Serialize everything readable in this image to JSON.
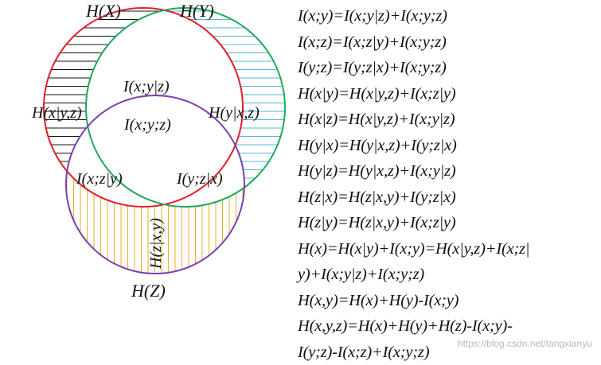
{
  "colors": {
    "circle_x": "#e0202a",
    "circle_y": "#1faa5a",
    "circle_z": "#7a3fb0",
    "hatch_x": "#111111",
    "hatch_y": "#4fb8d8",
    "hatch_z": "#e8b020"
  },
  "venn": {
    "label_hx": "H(X)",
    "label_hy": "H(Y)",
    "label_hz": "H(Z)",
    "region_x_only": "H(x|y,z)",
    "region_y_only": "H(y|x,z)",
    "region_z_only": "H(z|x,y)",
    "region_xy_given_z": "I(x;y|z)",
    "region_xyz": "I(x;y;z)",
    "region_xz_given_y": "I(x;z|y)",
    "region_yz_given_x": "I(y;z|x)"
  },
  "equations": [
    "I(x;y)=I(x;y|z)+I(x;y;z)",
    "I(x;z)=I(x;z|y)+I(x;y;z)",
    "I(y;z)=I(y;z|x)+I(x;y;z)",
    "H(x|y)=H(x|y,z)+I(x;z|y)",
    "H(x|z)=H(x|y,z)+I(x;y|z)",
    "H(y|x)=H(y|x,z)+I(y;z|x)",
    "H(y|z)=H(y|x,z)+I(x;y|z)",
    "H(z|x)=H(z|x,y)+I(y;z|x)",
    "H(z|y)=H(z|x,y)+I(x;z|y)",
    "H(x)=H(x|y)+I(x;y)=H(x|y,z)+I(x;z|",
    "y)+I(x;y|z)+I(x;y;z)",
    "H(x,y)=H(x)+H(y)-I(x;y)",
    "H(x,y,z)=H(x)+H(y)+H(z)-I(x;y)-",
    "I(y;z)-I(x;z)+I(x;y;z)"
  ],
  "watermark": "https://blog.csdn.net/tangxianyu"
}
